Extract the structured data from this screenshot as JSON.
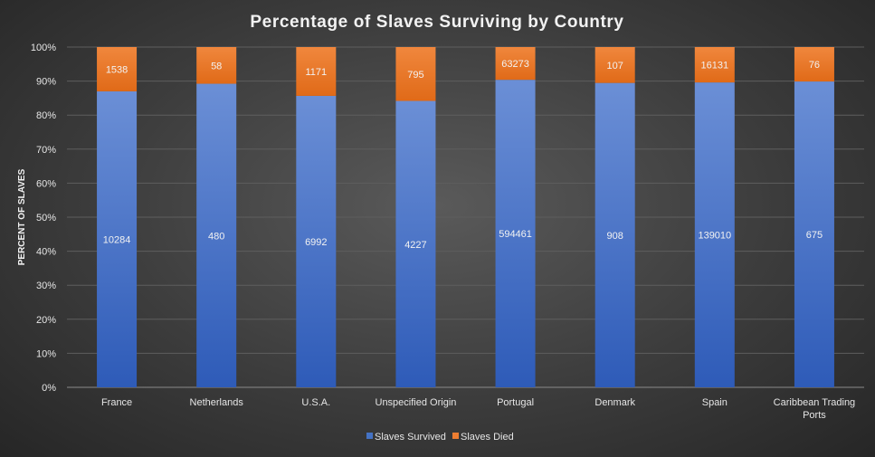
{
  "chart_data": {
    "type": "bar",
    "stacked": "percent",
    "title": "Percentage  of Slaves Surviving  by Country",
    "xlabel": "",
    "ylabel": "PERCENT OF SLAVES",
    "ylim": [
      0,
      100
    ],
    "yticks": [
      "0%",
      "10%",
      "20%",
      "30%",
      "40%",
      "50%",
      "60%",
      "70%",
      "80%",
      "90%",
      "100%"
    ],
    "categories": [
      "France",
      "Netherlands",
      "U.S.A.",
      "Unspecified Origin",
      "Portugal",
      "Denmark",
      "Spain",
      "Caribbean Trading Ports"
    ],
    "series": [
      {
        "name": "Slaves Survived",
        "color": "#4472C4",
        "values": [
          10284,
          480,
          6992,
          4227,
          594461,
          908,
          139010,
          675
        ]
      },
      {
        "name": "Slaves Died",
        "color": "#ED7D31",
        "values": [
          1538,
          58,
          1171,
          795,
          63273,
          107,
          16131,
          76
        ]
      }
    ],
    "grid": true,
    "legend": "bottom"
  }
}
